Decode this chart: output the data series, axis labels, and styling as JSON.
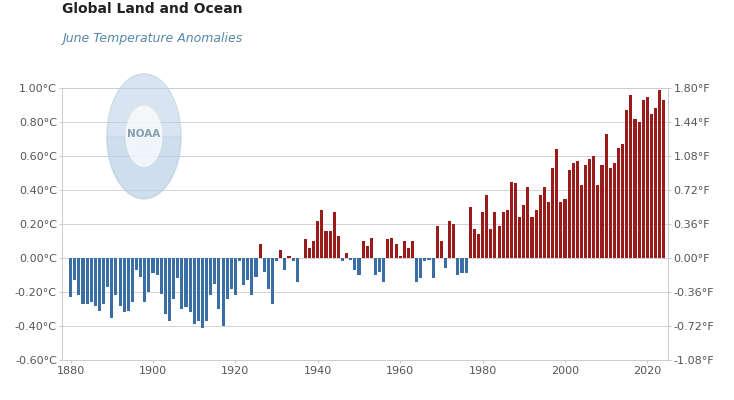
{
  "title": "Global Land and Ocean",
  "subtitle": "June Temperature Anomalies",
  "bg_color": "#ffffff",
  "bar_color_pos": "#9b1b1b",
  "bar_color_neg": "#3a6ea5",
  "grid_color": "#cccccc",
  "years": [
    1880,
    1881,
    1882,
    1883,
    1884,
    1885,
    1886,
    1887,
    1888,
    1889,
    1890,
    1891,
    1892,
    1893,
    1894,
    1895,
    1896,
    1897,
    1898,
    1899,
    1900,
    1901,
    1902,
    1903,
    1904,
    1905,
    1906,
    1907,
    1908,
    1909,
    1910,
    1911,
    1912,
    1913,
    1914,
    1915,
    1916,
    1917,
    1918,
    1919,
    1920,
    1921,
    1922,
    1923,
    1924,
    1925,
    1926,
    1927,
    1928,
    1929,
    1930,
    1931,
    1932,
    1933,
    1934,
    1935,
    1936,
    1937,
    1938,
    1939,
    1940,
    1941,
    1942,
    1943,
    1944,
    1945,
    1946,
    1947,
    1948,
    1949,
    1950,
    1951,
    1952,
    1953,
    1954,
    1955,
    1956,
    1957,
    1958,
    1959,
    1960,
    1961,
    1962,
    1963,
    1964,
    1965,
    1966,
    1967,
    1968,
    1969,
    1970,
    1971,
    1972,
    1973,
    1974,
    1975,
    1976,
    1977,
    1978,
    1979,
    1980,
    1981,
    1982,
    1983,
    1984,
    1985,
    1986,
    1987,
    1988,
    1989,
    1990,
    1991,
    1992,
    1993,
    1994,
    1995,
    1996,
    1997,
    1998,
    1999,
    2000,
    2001,
    2002,
    2003,
    2004,
    2005,
    2006,
    2007,
    2008,
    2009,
    2010,
    2011,
    2012,
    2013,
    2014,
    2015,
    2016,
    2017,
    2018,
    2019,
    2020,
    2021,
    2022,
    2023,
    2024
  ],
  "anomalies": [
    -0.23,
    -0.13,
    -0.22,
    -0.27,
    -0.27,
    -0.26,
    -0.28,
    -0.31,
    -0.27,
    -0.17,
    -0.35,
    -0.22,
    -0.28,
    -0.32,
    -0.31,
    -0.26,
    -0.07,
    -0.11,
    -0.26,
    -0.2,
    -0.09,
    -0.1,
    -0.21,
    -0.33,
    -0.37,
    -0.24,
    -0.12,
    -0.3,
    -0.29,
    -0.32,
    -0.39,
    -0.37,
    -0.41,
    -0.37,
    -0.22,
    -0.15,
    -0.3,
    -0.4,
    -0.24,
    -0.18,
    -0.22,
    -0.02,
    -0.16,
    -0.13,
    -0.22,
    -0.11,
    0.08,
    -0.08,
    -0.18,
    -0.27,
    -0.02,
    0.05,
    -0.07,
    0.01,
    -0.02,
    -0.14,
    0.0,
    0.11,
    0.06,
    0.1,
    0.22,
    0.28,
    0.16,
    0.16,
    0.27,
    0.13,
    -0.02,
    0.03,
    -0.01,
    -0.07,
    -0.1,
    0.1,
    0.07,
    0.12,
    -0.1,
    -0.08,
    -0.14,
    0.11,
    0.12,
    0.08,
    0.01,
    0.1,
    0.06,
    0.1,
    -0.14,
    -0.12,
    -0.02,
    -0.01,
    -0.12,
    0.19,
    0.1,
    -0.06,
    0.22,
    0.2,
    -0.1,
    -0.09,
    -0.09,
    0.3,
    0.17,
    0.14,
    0.27,
    0.37,
    0.17,
    0.27,
    0.19,
    0.27,
    0.28,
    0.45,
    0.44,
    0.24,
    0.31,
    0.42,
    0.24,
    0.28,
    0.37,
    0.42,
    0.33,
    0.53,
    0.64,
    0.33,
    0.35,
    0.52,
    0.56,
    0.57,
    0.43,
    0.55,
    0.58,
    0.6,
    0.43,
    0.55,
    0.73,
    0.53,
    0.56,
    0.65,
    0.67,
    0.87,
    0.96,
    0.82,
    0.8,
    0.93,
    0.95,
    0.85,
    0.88,
    0.99,
    0.93
  ],
  "ylim_celsius": [
    -0.6,
    1.0
  ],
  "ylim_fahrenheit": [
    -1.08,
    1.8
  ],
  "yticks_celsius": [
    -0.6,
    -0.4,
    -0.2,
    0.0,
    0.2,
    0.4,
    0.6,
    0.8,
    1.0
  ],
  "yticks_fahrenheit": [
    -1.08,
    -0.72,
    -0.36,
    0.0,
    0.36,
    0.72,
    1.08,
    1.44,
    1.8
  ],
  "ytick_labels_celsius": [
    "-0.60°C",
    "-0.40°C",
    "-0.20°C",
    "0.00°C",
    "0.20°C",
    "0.40°C",
    "0.60°C",
    "0.80°C",
    "1.00°C"
  ],
  "ytick_labels_fahrenheit": [
    "-1.08°F",
    "-0.72°F",
    "-0.36°F",
    "0.00°F",
    "0.36°F",
    "0.72°F",
    "1.08°F",
    "1.44°F",
    "1.80°F"
  ],
  "xticks": [
    1880,
    1900,
    1920,
    1940,
    1960,
    1980,
    2000,
    2020
  ],
  "title_fontsize": 10,
  "subtitle_fontsize": 9,
  "tick_fontsize": 8,
  "axis_label_color": "#555555",
  "title_color": "#222222",
  "subtitle_color": "#5588aa",
  "noaa_logo_color": "#b8d0e4",
  "noaa_text_color": "#7090a8",
  "xlim": [
    1878,
    2025
  ]
}
